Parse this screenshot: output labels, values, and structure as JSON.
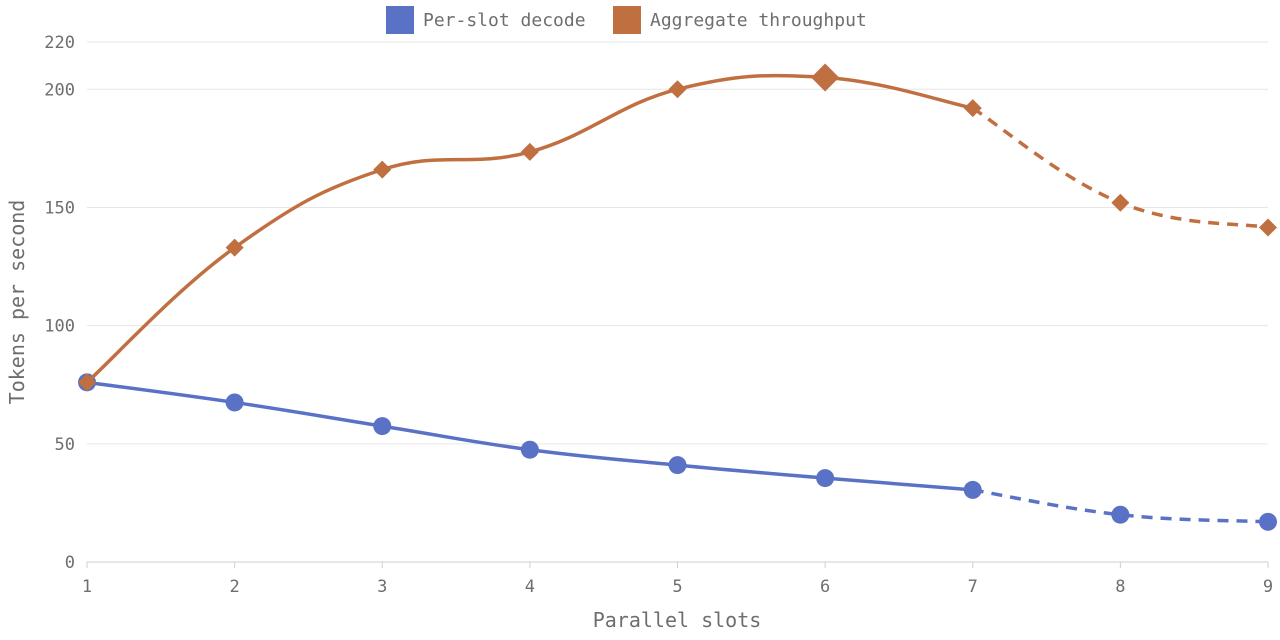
{
  "chart_data": {
    "type": "line",
    "title": "",
    "xlabel": "Parallel slots",
    "ylabel": "Tokens per second",
    "x": [
      1,
      2,
      3,
      4,
      5,
      6,
      7,
      8,
      9
    ],
    "xlim": [
      1,
      9
    ],
    "ylim": [
      0,
      220
    ],
    "yticks": [
      0,
      50,
      100,
      150,
      200,
      220
    ],
    "grid": true,
    "legend_position": "top-center",
    "series": [
      {
        "name": "Per-slot decode",
        "color": "#5a72c6",
        "marker": "circle",
        "values": [
          76,
          67.5,
          57.5,
          47.5,
          41,
          35.5,
          30.5,
          20,
          17
        ],
        "dashed_from_x": 7
      },
      {
        "name": "Aggregate throughput",
        "color": "#c07040",
        "marker": "diamond",
        "values": [
          76,
          133,
          166,
          173.5,
          200,
          205,
          192,
          152,
          141.5
        ],
        "dashed_from_x": 7,
        "highlight_x": 6
      }
    ]
  }
}
